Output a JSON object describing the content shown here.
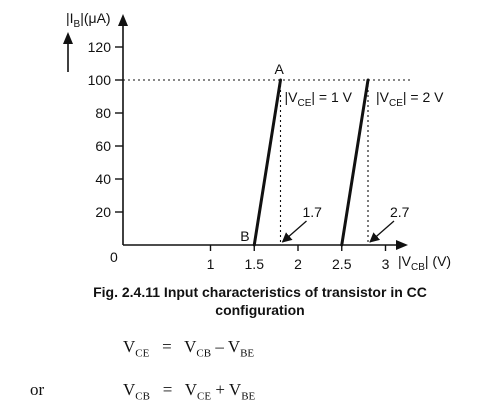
{
  "chart_data": {
    "type": "line",
    "ylabel_main": "|I",
    "ylabel_sub": "B",
    "ylabel_unit": "|(μA)",
    "xlabel_main": "|V",
    "xlabel_sub": "CB",
    "xlabel_unit": "| (V)",
    "origin_label": "0",
    "x_ticks": [
      "1",
      "1.5",
      "2",
      "2.5",
      "3"
    ],
    "x_tick_values": [
      1,
      1.5,
      2,
      2.5,
      3
    ],
    "y_ticks": [
      "20",
      "40",
      "60",
      "80",
      "100",
      "120"
    ],
    "y_tick_values": [
      20,
      40,
      60,
      80,
      100,
      120
    ],
    "xlim": [
      0,
      3.3
    ],
    "ylim": [
      0,
      130
    ],
    "series": [
      {
        "name": "|VCE| = 1 V",
        "name_prefix": "|V",
        "name_sub": "CE",
        "name_suffix": "| = 1 V",
        "x": [
          1.5,
          1.8
        ],
        "y": [
          0,
          100
        ]
      },
      {
        "name": "|VCE| = 2 V",
        "name_prefix": "|V",
        "name_sub": "CE",
        "name_suffix": "| = 2 V",
        "x": [
          2.5,
          2.8
        ],
        "y": [
          0,
          100
        ]
      }
    ],
    "point_labels": {
      "A": "A",
      "B": "B"
    },
    "annotations": [
      {
        "text": "1.7",
        "x": 1.8
      },
      {
        "text": "2.7",
        "x": 2.8
      }
    ]
  },
  "caption": {
    "line1": "Fig. 2.4.11 Input characteristics of transistor in CC",
    "line2": "configuration"
  },
  "equations": {
    "eq1": {
      "lhs": "V",
      "lhs_sub": "CE",
      "eq": "=",
      "t1": "V",
      "t1_sub": "CB",
      "op": "–",
      "t2": "V",
      "t2_sub": "BE"
    },
    "or_word": "or",
    "eq2": {
      "lhs": "V",
      "lhs_sub": "CB",
      "eq": "=",
      "t1": "V",
      "t1_sub": "CE",
      "op": "+",
      "t2": "V",
      "t2_sub": "BE"
    }
  }
}
